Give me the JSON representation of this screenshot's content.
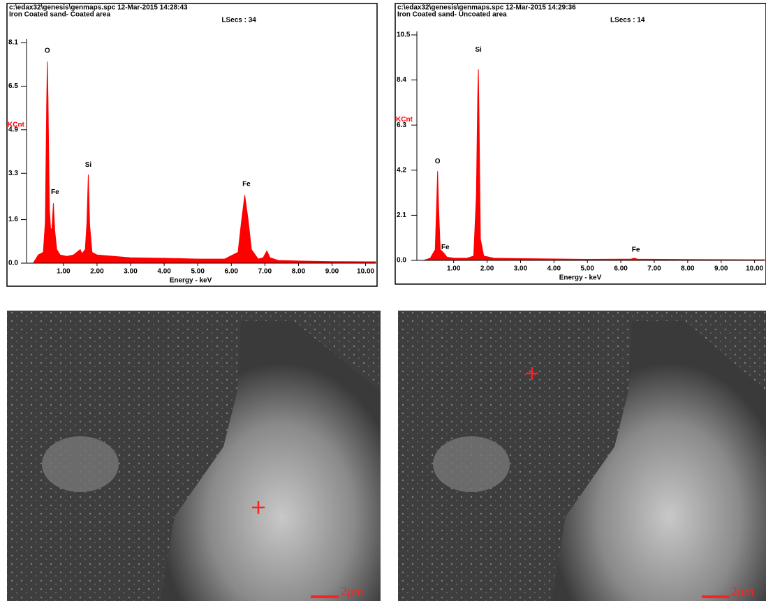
{
  "chart_data": [
    {
      "type": "area",
      "header": "c:\\edax32\\genesis\\genmaps.spc  12-Mar-2015 14:28:43",
      "title": "Iron Coated sand- Coated area",
      "live_time": "LSecs : 34",
      "ylabel": "KCnt",
      "xlabel": "Energy - keV",
      "color": "#ff0000",
      "x": [
        0.1,
        0.25,
        0.4,
        0.46,
        0.5,
        0.52,
        0.54,
        0.58,
        0.62,
        0.66,
        0.7,
        0.74,
        0.8,
        0.9,
        1.1,
        1.3,
        1.45,
        1.5,
        1.55,
        1.65,
        1.7,
        1.74,
        1.78,
        1.85,
        2.0,
        2.5,
        3,
        4,
        5,
        5.8,
        6.2,
        6.3,
        6.4,
        6.5,
        6.6,
        6.8,
        6.95,
        7.06,
        7.15,
        7.4,
        8,
        9,
        10,
        10.3
      ],
      "values": [
        0,
        0.3,
        0.4,
        1.5,
        5.8,
        7.4,
        6,
        2,
        1.2,
        1.3,
        2.2,
        1.2,
        0.5,
        0.3,
        0.25,
        0.3,
        0.45,
        0.5,
        0.35,
        0.5,
        1.5,
        3.25,
        1.4,
        0.4,
        0.3,
        0.25,
        0.2,
        0.18,
        0.15,
        0.15,
        0.4,
        1.5,
        2.5,
        1.6,
        0.5,
        0.15,
        0.2,
        0.45,
        0.2,
        0.1,
        0.08,
        0.06,
        0.05,
        0.05
      ],
      "annotations": [
        {
          "text": "O",
          "x": 0.52,
          "y": 7.8
        },
        {
          "text": "Fe",
          "x": 0.75,
          "y": 2.6
        },
        {
          "text": "Si",
          "x": 1.74,
          "y": 3.6
        },
        {
          "text": "Fe",
          "x": 6.45,
          "y": 2.9
        }
      ],
      "xlim": [
        -0.1,
        10.3
      ],
      "ylim": [
        0,
        8.1
      ],
      "xticks": [
        {
          "value": 1,
          "label": "1.00"
        },
        {
          "value": 2,
          "label": "2.00"
        },
        {
          "value": 3,
          "label": "3.00"
        },
        {
          "value": 4,
          "label": "4.00"
        },
        {
          "value": 5,
          "label": "5.00"
        },
        {
          "value": 6,
          "label": "6.00"
        },
        {
          "value": 7,
          "label": "7.00"
        },
        {
          "value": 8,
          "label": "8.00"
        },
        {
          "value": 9,
          "label": "9.00"
        },
        {
          "value": 10,
          "label": "10.00"
        }
      ],
      "yticks": [
        {
          "value": 0,
          "label": "0.0"
        },
        1.6,
        3.3,
        4.9,
        6.5,
        8.1
      ]
    },
    {
      "type": "area",
      "header": "c:\\edax32\\genesis\\genmaps.spc  12-Mar-2015 14:29:36",
      "title": "Iron Coated sand- Uncoated area",
      "live_time": "LSecs : 14",
      "ylabel": "KCnt",
      "xlabel": "Energy - keV",
      "color": "#ff0000",
      "x": [
        0.1,
        0.3,
        0.45,
        0.5,
        0.52,
        0.55,
        0.6,
        0.7,
        0.8,
        1.0,
        1.4,
        1.6,
        1.68,
        1.72,
        1.74,
        1.76,
        1.8,
        1.9,
        2.2,
        3,
        5,
        6.3,
        6.4,
        6.5,
        8,
        10,
        10.3
      ],
      "values": [
        0,
        0.1,
        0.5,
        3,
        4.15,
        2.5,
        0.5,
        0.35,
        0.15,
        0.1,
        0.1,
        0.2,
        3,
        7.5,
        8.9,
        6.5,
        1,
        0.2,
        0.1,
        0.08,
        0.05,
        0.06,
        0.1,
        0.06,
        0.04,
        0.03,
        0.03
      ],
      "annotations": [
        {
          "text": "O",
          "x": 0.52,
          "y": 4.6
        },
        {
          "text": "Fe",
          "x": 0.75,
          "y": 0.6
        },
        {
          "text": "Si",
          "x": 1.74,
          "y": 9.8
        },
        {
          "text": "Fe",
          "x": 6.45,
          "y": 0.5
        }
      ],
      "xlim": [
        -0.1,
        10.3
      ],
      "ylim": [
        0,
        10.5
      ],
      "xticks": [
        {
          "value": 1,
          "label": "1.00"
        },
        {
          "value": 2,
          "label": "2.00"
        },
        {
          "value": 3,
          "label": "3.00"
        },
        {
          "value": 4,
          "label": "4.00"
        },
        {
          "value": 5,
          "label": "5.00"
        },
        {
          "value": 6,
          "label": "6.00"
        },
        {
          "value": 7,
          "label": "7.00"
        },
        {
          "value": 8,
          "label": "8.00"
        },
        {
          "value": 9,
          "label": "9.00"
        },
        {
          "value": 10,
          "label": "10.00"
        }
      ],
      "yticks": [
        {
          "value": 0,
          "label": "0.0"
        },
        2.1,
        4.2,
        6.3,
        8.4,
        10.5
      ]
    }
  ],
  "images": [
    {
      "scale_label": "2μm"
    },
    {
      "scale_label": "2μm"
    }
  ]
}
